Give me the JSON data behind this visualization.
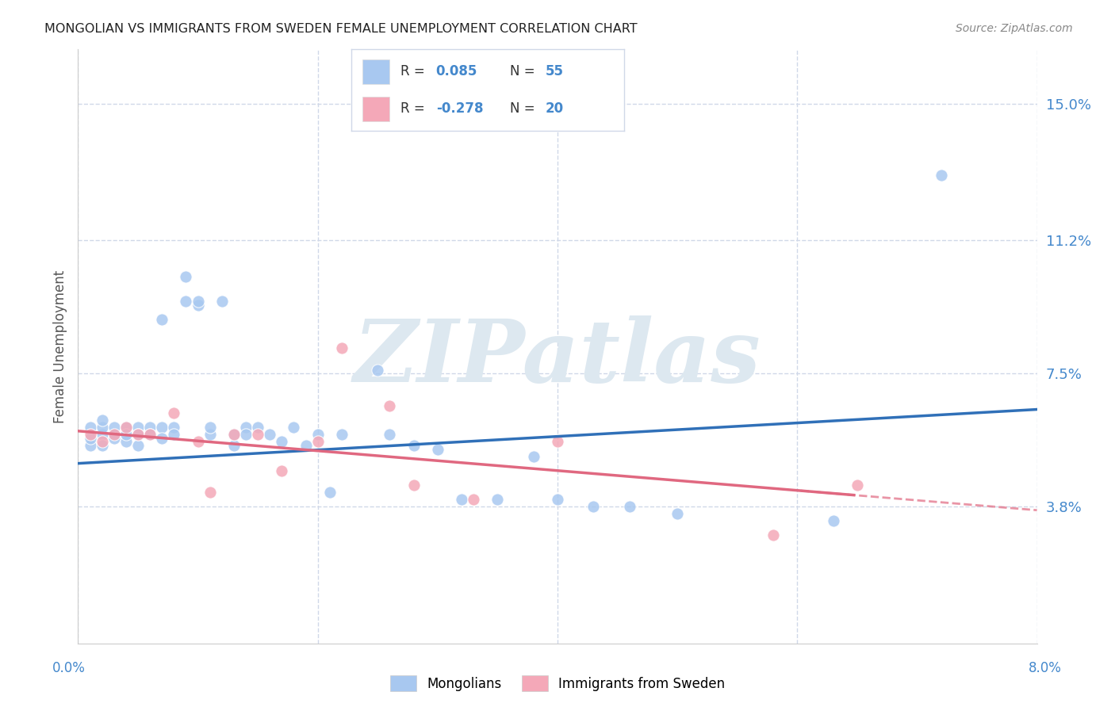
{
  "title": "MONGOLIAN VS IMMIGRANTS FROM SWEDEN FEMALE UNEMPLOYMENT CORRELATION CHART",
  "source": "Source: ZipAtlas.com",
  "ylabel": "Female Unemployment",
  "ytick_labels": [
    "15.0%",
    "11.2%",
    "7.5%",
    "3.8%"
  ],
  "ytick_values": [
    0.15,
    0.112,
    0.075,
    0.038
  ],
  "xlim": [
    0.0,
    0.08
  ],
  "ylim": [
    0.0,
    0.165
  ],
  "background_color": "#ffffff",
  "watermark_text": "ZIPatlas",
  "watermark_color": "#dde8f0",
  "mongolian_R": 0.085,
  "mongolian_N": 55,
  "sweden_R": -0.278,
  "sweden_N": 20,
  "mongolian_color": "#a8c8f0",
  "sweden_color": "#f4a8b8",
  "mongolian_line_color": "#3070b8",
  "sweden_line_color": "#e06880",
  "mongolian_x": [
    0.001,
    0.001,
    0.001,
    0.002,
    0.002,
    0.002,
    0.002,
    0.003,
    0.003,
    0.003,
    0.004,
    0.004,
    0.004,
    0.005,
    0.005,
    0.005,
    0.006,
    0.006,
    0.007,
    0.007,
    0.007,
    0.008,
    0.008,
    0.009,
    0.009,
    0.01,
    0.01,
    0.011,
    0.011,
    0.012,
    0.013,
    0.013,
    0.014,
    0.014,
    0.015,
    0.016,
    0.017,
    0.018,
    0.019,
    0.02,
    0.021,
    0.022,
    0.025,
    0.026,
    0.028,
    0.03,
    0.032,
    0.035,
    0.038,
    0.04,
    0.043,
    0.046,
    0.05,
    0.063,
    0.072
  ],
  "mongolian_y": [
    0.055,
    0.057,
    0.06,
    0.058,
    0.06,
    0.062,
    0.055,
    0.058,
    0.06,
    0.057,
    0.06,
    0.056,
    0.058,
    0.055,
    0.06,
    0.058,
    0.06,
    0.058,
    0.09,
    0.06,
    0.057,
    0.06,
    0.058,
    0.102,
    0.095,
    0.094,
    0.095,
    0.058,
    0.06,
    0.095,
    0.055,
    0.058,
    0.06,
    0.058,
    0.06,
    0.058,
    0.056,
    0.06,
    0.055,
    0.058,
    0.042,
    0.058,
    0.076,
    0.058,
    0.055,
    0.054,
    0.04,
    0.04,
    0.052,
    0.04,
    0.038,
    0.038,
    0.036,
    0.034,
    0.13
  ],
  "sweden_x": [
    0.001,
    0.002,
    0.003,
    0.004,
    0.005,
    0.006,
    0.008,
    0.01,
    0.011,
    0.013,
    0.015,
    0.017,
    0.02,
    0.022,
    0.026,
    0.028,
    0.033,
    0.04,
    0.058,
    0.065
  ],
  "sweden_y": [
    0.058,
    0.056,
    0.058,
    0.06,
    0.058,
    0.058,
    0.064,
    0.056,
    0.042,
    0.058,
    0.058,
    0.048,
    0.056,
    0.082,
    0.066,
    0.044,
    0.04,
    0.056,
    0.03,
    0.044
  ],
  "grid_color": "#d0d8e8",
  "tick_color": "#4488cc",
  "title_color": "#222222",
  "source_color": "#888888",
  "ylabel_color": "#555555"
}
